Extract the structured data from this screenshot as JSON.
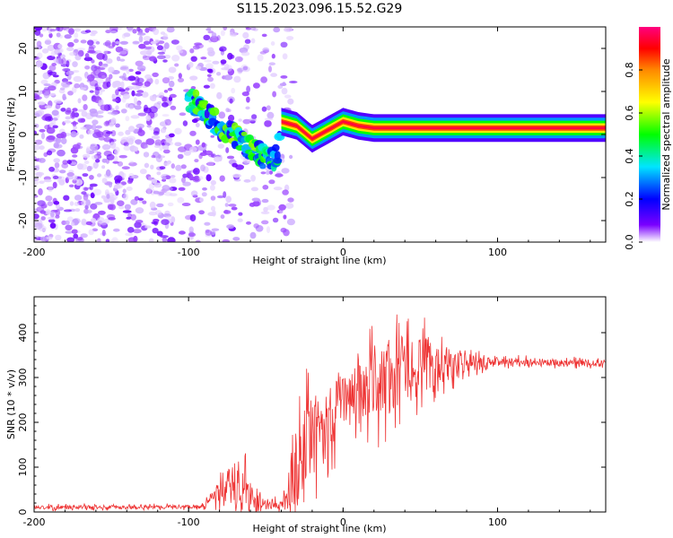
{
  "title": "S115.2023.096.15.52.G29",
  "chart_data": [
    {
      "type": "heatmap",
      "title": "S115.2023.096.15.52.G29",
      "xlabel": "Height of straight line (km)",
      "ylabel": "Frequency (Hz)",
      "xlim": [
        -200,
        170
      ],
      "ylim": [
        -25,
        25
      ],
      "xticks": [
        -200,
        -100,
        0,
        100
      ],
      "yticks": [
        -20,
        -10,
        0,
        10,
        20
      ],
      "colorbar": {
        "label": "Normalized spectral amplitude",
        "range": [
          0,
          1
        ],
        "ticks": [
          "0.0",
          "0.2",
          "0.4",
          "0.6",
          "0.8"
        ],
        "colors": [
          "#ffffff",
          "#7a00ff",
          "#0000ff",
          "#00e5ff",
          "#00ff00",
          "#ffff00",
          "#ff8800",
          "#ff0000",
          "#ff0080"
        ]
      },
      "ridge": {
        "x": [
          -100,
          -90,
          -80,
          -70,
          -60,
          -50,
          -42,
          -40,
          -30,
          -20,
          -10,
          0,
          10,
          20,
          40,
          60,
          100,
          170
        ],
        "y": [
          8,
          6,
          2,
          0,
          -3,
          -6,
          -5,
          3,
          2,
          -1,
          1,
          3,
          2,
          1.5,
          1.5,
          1.5,
          1.5,
          1.5
        ]
      },
      "noise_region_x": [
        -200,
        -40
      ]
    },
    {
      "type": "line",
      "xlabel": "Height of straight line (km)",
      "ylabel": "SNR (10 * v/v)",
      "xlim": [
        -200,
        170
      ],
      "ylim": [
        0,
        480
      ],
      "xticks": [
        -200,
        -100,
        0,
        100
      ],
      "yticks": [
        0,
        100,
        200,
        300,
        400
      ],
      "color": "#ee3333",
      "envelope": {
        "x": [
          -200,
          -90,
          -85,
          -70,
          -65,
          -55,
          -40,
          -30,
          -20,
          -10,
          0,
          10,
          20,
          30,
          40,
          50,
          60,
          70,
          80,
          90,
          100,
          120,
          140,
          170
        ],
        "mean": [
          10,
          12,
          30,
          60,
          50,
          20,
          15,
          90,
          160,
          200,
          250,
          265,
          285,
          300,
          320,
          330,
          330,
          330,
          330,
          332,
          335,
          335,
          333,
          332
        ],
        "amp": [
          8,
          8,
          30,
          100,
          110,
          30,
          15,
          200,
          180,
          140,
          120,
          120,
          140,
          170,
          130,
          110,
          90,
          60,
          40,
          25,
          18,
          14,
          14,
          14
        ]
      }
    }
  ]
}
